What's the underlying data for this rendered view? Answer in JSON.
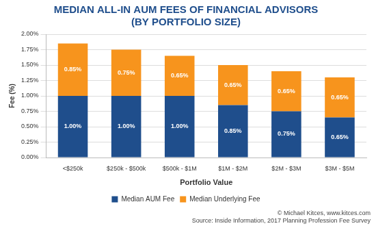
{
  "chart_data": {
    "type": "bar",
    "title": [
      "MEDIAN ALL-IN AUM FEES OF FINANCIAL ADVISORS",
      "(BY PORTFOLIO SIZE)"
    ],
    "x_label": "Portfolio Value",
    "y_label": "Fee (%)",
    "categories": [
      "<$250k",
      "$250k - $500k",
      "$500k - $1M",
      "$1M - $2M",
      "$2M - $3M",
      "$3M - $5M"
    ],
    "series": [
      {
        "name": "Median AUM Fee",
        "color": "#1f4e8c",
        "values": [
          1.0,
          1.0,
          1.0,
          0.85,
          0.75,
          0.65
        ],
        "value_labels": [
          "1.00%",
          "1.00%",
          "1.00%",
          "0.85%",
          "0.75%",
          "0.65%"
        ]
      },
      {
        "name": "Median Underlying Fee",
        "color": "#f7941d",
        "values": [
          0.85,
          0.75,
          0.65,
          0.65,
          0.65,
          0.65
        ],
        "value_labels": [
          "0.85%",
          "0.75%",
          "0.65%",
          "0.65%",
          "0.65%",
          "0.65%"
        ]
      }
    ],
    "stacked": true,
    "data_labels": true,
    "ylim": [
      0,
      2
    ],
    "yticks": [
      {
        "value": 0,
        "label": "0.00%"
      },
      {
        "value": 0.25,
        "label": "0.25%"
      },
      {
        "value": 0.5,
        "label": "0.50%"
      },
      {
        "value": 0.75,
        "label": "0.75%"
      },
      {
        "value": 1,
        "label": "1.00%"
      },
      {
        "value": 1.25,
        "label": "1.25%"
      },
      {
        "value": 1.5,
        "label": "1.50%"
      },
      {
        "value": 1.75,
        "label": "1.75%"
      },
      {
        "value": 2,
        "label": "2.00%"
      }
    ],
    "grid": true,
    "legend": "bottom",
    "annotations": [
      "© Michael Kitces, www.kitces.com",
      "Source: Inside Information, 2017 Planning Profession Fee Survey"
    ]
  }
}
